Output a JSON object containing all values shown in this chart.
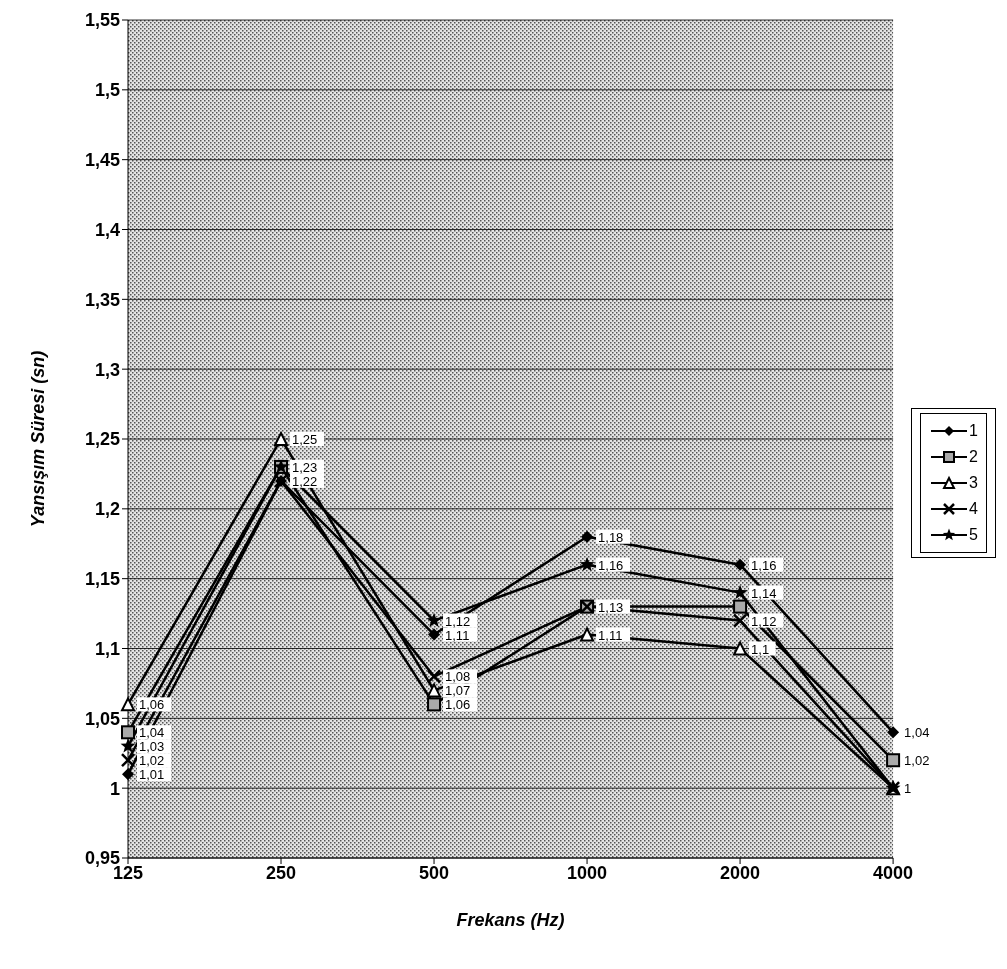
{
  "chart_data": {
    "type": "line",
    "xlabel": "Frekans (Hz)",
    "ylabel": "Yansışım Süresi (sn)",
    "categories": [
      "125",
      "250",
      "500",
      "1000",
      "2000",
      "4000"
    ],
    "ylim": [
      0.95,
      1.55
    ],
    "yticks": [
      {
        "value": 0.95,
        "label": "0,95"
      },
      {
        "value": 1,
        "label": "1"
      },
      {
        "value": 1.05,
        "label": "1,05"
      },
      {
        "value": 1.1,
        "label": "1,1"
      },
      {
        "value": 1.15,
        "label": "1,15"
      },
      {
        "value": 1.2,
        "label": "1,2"
      },
      {
        "value": 1.25,
        "label": "1,25"
      },
      {
        "value": 1.3,
        "label": "1,3"
      },
      {
        "value": 1.35,
        "label": "1,35"
      },
      {
        "value": 1.4,
        "label": "1,4"
      },
      {
        "value": 1.45,
        "label": "1,45"
      },
      {
        "value": 1.5,
        "label": "1,5"
      },
      {
        "value": 1.55,
        "label": "1,55"
      }
    ],
    "grid": "y",
    "legend": "right",
    "series": [
      {
        "name": "1",
        "color": "#000000",
        "marker": "diamond",
        "values": [
          1.01,
          1.22,
          1.11,
          1.18,
          1.16,
          1.04
        ],
        "value_labels": [
          "1,01",
          "1,22",
          "1,11",
          "1,18",
          "1,16",
          "1,04"
        ]
      },
      {
        "name": "2",
        "color": "#000000",
        "marker": "square",
        "values": [
          1.04,
          1.23,
          1.06,
          1.13,
          1.13,
          1.02
        ],
        "value_labels": [
          "1,04",
          "1,23",
          "1,06",
          "1,13",
          null,
          "1,02"
        ]
      },
      {
        "name": "3",
        "color": "#000000",
        "marker": "triangle",
        "values": [
          1.06,
          1.25,
          1.07,
          1.11,
          1.1,
          1
        ],
        "value_labels": [
          "1,06",
          "1,25",
          "1,07",
          "1,11",
          "1,1",
          "1"
        ]
      },
      {
        "name": "4",
        "color": "#000000",
        "marker": "cross",
        "values": [
          1.02,
          1.22,
          1.08,
          1.13,
          1.12,
          1
        ],
        "value_labels": [
          "1,02",
          null,
          "1,08",
          null,
          "1,12",
          null
        ]
      },
      {
        "name": "5",
        "color": "#000000",
        "marker": "star",
        "values": [
          1.03,
          1.23,
          1.12,
          1.16,
          1.14,
          1
        ],
        "value_labels": [
          "1,03",
          null,
          "1,12",
          "1,16",
          "1,14",
          null
        ]
      }
    ]
  }
}
